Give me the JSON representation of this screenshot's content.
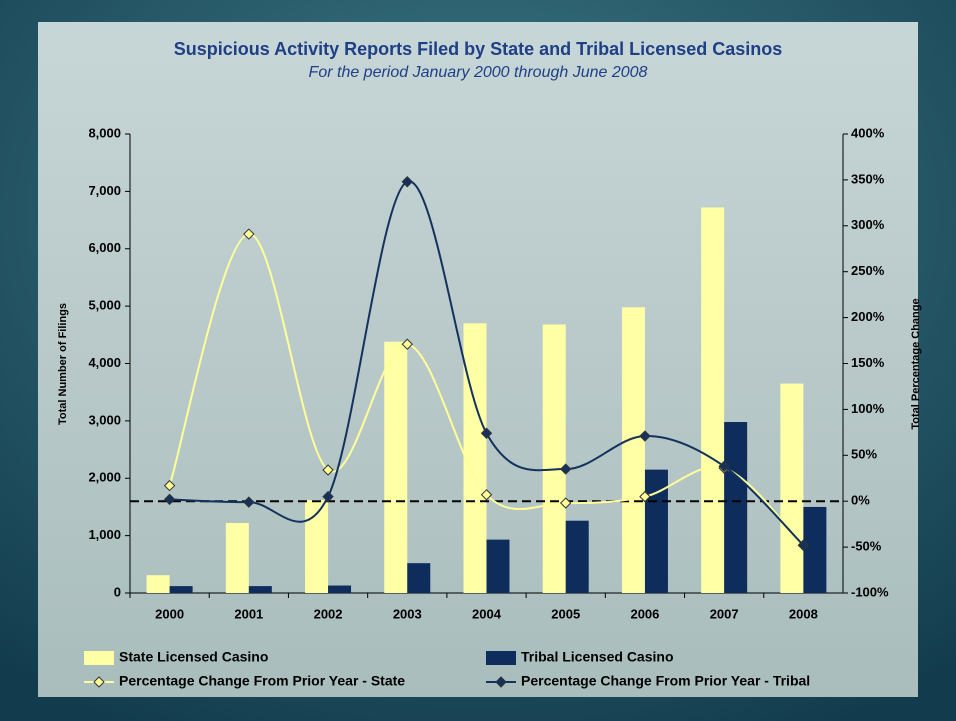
{
  "chart_data": {
    "type": "combo",
    "title": "Suspicious Activity Reports Filed by State and Tribal Licensed Casinos",
    "subtitle": "For the period January 2000 through June 2008",
    "y_label": "Total Number of Filings",
    "y2_label": "Total Percentage Change",
    "categories": [
      "2000",
      "2001",
      "2002",
      "2003",
      "2004",
      "2005",
      "2006",
      "2007",
      "2008"
    ],
    "ylim": [
      0,
      8000
    ],
    "yticks": [
      {
        "value": 0,
        "label": "0"
      },
      {
        "value": 1000,
        "label": "1,000"
      },
      {
        "value": 2000,
        "label": "2,000"
      },
      {
        "value": 3000,
        "label": "3,000"
      },
      {
        "value": 4000,
        "label": "4,000"
      },
      {
        "value": 5000,
        "label": "5,000"
      },
      {
        "value": 6000,
        "label": "6,000"
      },
      {
        "value": 7000,
        "label": "7,000"
      },
      {
        "value": 8000,
        "label": "8,000"
      }
    ],
    "y2lim": [
      -100,
      400
    ],
    "y2ticks": [
      {
        "value": -100,
        "label": "-100%"
      },
      {
        "value": -50,
        "label": "-50%"
      },
      {
        "value": 0,
        "label": "0%"
      },
      {
        "value": 50,
        "label": "50%"
      },
      {
        "value": 100,
        "label": "100%"
      },
      {
        "value": 150,
        "label": "150%"
      },
      {
        "value": 200,
        "label": "200%"
      },
      {
        "value": 250,
        "label": "250%"
      },
      {
        "value": 300,
        "label": "300%"
      },
      {
        "value": 350,
        "label": "350%"
      },
      {
        "value": 400,
        "label": "400%"
      }
    ],
    "zero_line": "dashed",
    "series": [
      {
        "name": "State Licensed Casino",
        "type": "bar",
        "color": "#ffffa6",
        "values": [
          310,
          1220,
          1620,
          4380,
          4700,
          4680,
          4980,
          6720,
          3650
        ]
      },
      {
        "name": "Tribal Licensed Casino",
        "type": "bar",
        "color": "#0e2d5c",
        "values": [
          120,
          120,
          130,
          520,
          930,
          1260,
          2150,
          2980,
          1500
        ]
      },
      {
        "name": "Percentage Change From Prior Year - State",
        "type": "line",
        "axis": "y2",
        "color": "#ffff99",
        "marker_color": "#ffff99",
        "values": [
          17,
          291,
          34,
          171,
          7,
          -2,
          5,
          36,
          -48
        ]
      },
      {
        "name": "Percentage Change From Prior Year - Tribal",
        "type": "line",
        "axis": "y2",
        "color": "#13325e",
        "marker_color": "#13325e",
        "values": [
          2,
          -1,
          5,
          348,
          74,
          35,
          71,
          38,
          -48
        ]
      }
    ]
  }
}
